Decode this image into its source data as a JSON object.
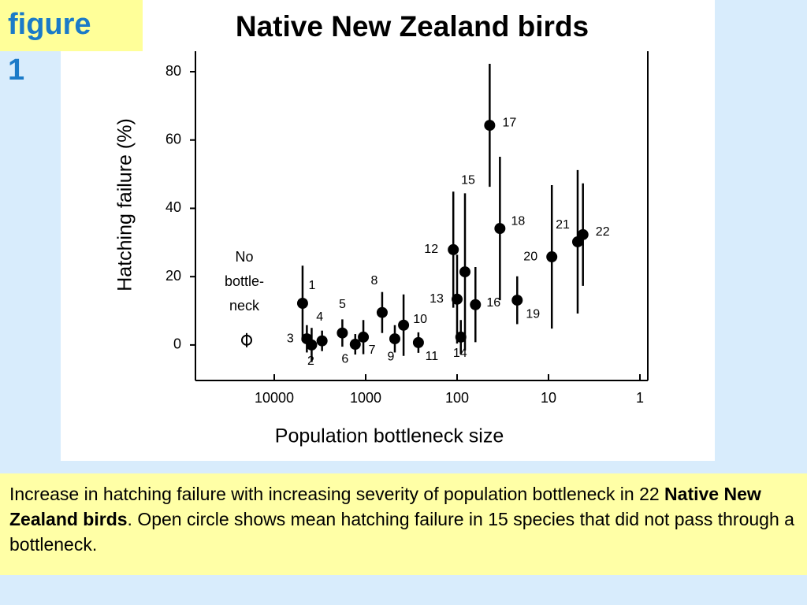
{
  "figure_label": [
    "figure",
    "1"
  ],
  "caption": [
    "Increase in hatching failure with increasing severity of population bottleneck in 22 ",
    "Native New Zealand birds",
    ". Open circle shows mean hatching failure in 15 species that did not pass through a bottleneck."
  ],
  "chart_data": {
    "type": "scatter",
    "title": "Native New Zealand birds",
    "x_label": "Population bottleneck size",
    "y_label": "Hatching failure (%)",
    "xscale": "log",
    "xlim": [
      72800,
      0.82
    ],
    "xticks": [
      10000,
      1000,
      100,
      10,
      1
    ],
    "ylim": [
      -10.4,
      86
    ],
    "yticks": [
      0,
      20,
      40,
      60,
      80
    ],
    "series": [
      {
        "color": "#000000",
        "labels": [
          "1",
          "2",
          "3",
          "4",
          "5",
          "6",
          "7",
          "8",
          "9",
          "10",
          "11",
          "12",
          "13",
          "14",
          "15",
          "16",
          "17",
          "18",
          "19",
          "20",
          "21",
          "22"
        ],
        "x": [
          4900,
          3900,
          4400,
          3000,
          1800,
          1300,
          1060,
          660,
          480,
          385,
          265,
          110,
          100,
          91,
          82,
          63,
          44,
          34,
          22,
          9.2,
          4.8,
          4.2
        ],
        "values": [
          12.2,
          0,
          1.8,
          1.2,
          3.5,
          0.2,
          2.3,
          9.5,
          1.8,
          5.8,
          0.7,
          27.9,
          13.4,
          2.3,
          21.4,
          11.8,
          64.3,
          34.1,
          13.1,
          25.8,
          30.2,
          32.3
        ],
        "errors": [
          11,
          5,
          4,
          3,
          4,
          3,
          5,
          6,
          4,
          9,
          3,
          17,
          13,
          5,
          23,
          11,
          18,
          21,
          7,
          21,
          21,
          15
        ]
      }
    ],
    "reference_point": {
      "label": [
        "No",
        "bottle-",
        "neck"
      ],
      "value": 1.4
    }
  }
}
